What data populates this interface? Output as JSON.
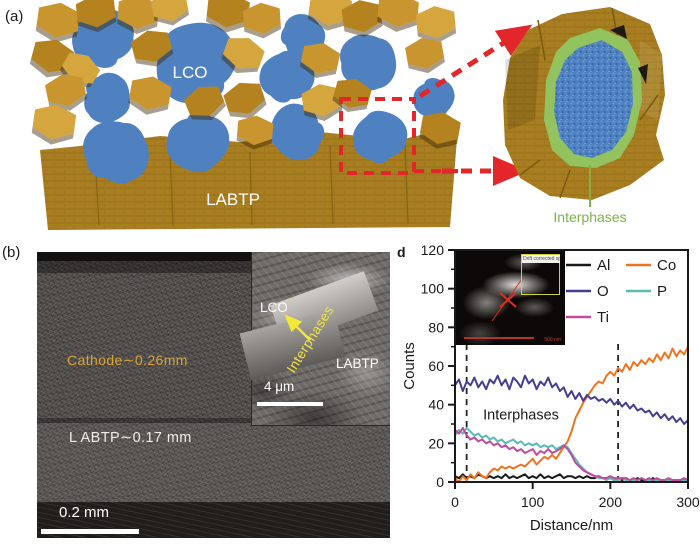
{
  "figure_labels": {
    "a": "(a)",
    "b": "(b)",
    "d": "d"
  },
  "panel_a": {
    "lco": "LCO",
    "labtp": "LABTP",
    "interphases": "Interphases",
    "colors": {
      "gold": "#b4831f",
      "lco_blue": "#4f81c0",
      "interphase_green": "#93c35e",
      "highlight_red": "#e3262a",
      "interphases_text_green": "#7cb342"
    }
  },
  "panel_b": {
    "cathode_label": "Cathode∼0.26mm",
    "labtp_label": "L ABTP∼0.17 mm",
    "scale_bar_label": "0.2 mm",
    "label_colors": {
      "cathode": "#d9a43c",
      "inset_yellow": "#f2e838"
    },
    "inset": {
      "lco": "LCO",
      "interphases": "Interphases",
      "labtp": "LABTP",
      "scale_bar_label": "4 μm"
    }
  },
  "panel_d": {
    "inset": {
      "box_label": "Drift corrected spect",
      "scale_bar_label": "500 nm"
    }
  },
  "chart_data": {
    "type": "line",
    "title": "",
    "xlabel": "Distance/nm",
    "ylabel": "Counts",
    "xlim": [
      0,
      300
    ],
    "ylim": [
      0,
      120
    ],
    "xticks": [
      0,
      100,
      200,
      300
    ],
    "yticks": [
      0,
      20,
      40,
      60,
      80,
      100,
      120
    ],
    "grid": false,
    "legend_position": "inside top-right, 2 columns",
    "x_step": 5,
    "annotation": {
      "text": "Interphases",
      "x": 85,
      "y": 35
    },
    "guide_lines": [
      {
        "x": 15,
        "y_top": 72
      },
      {
        "x": 210,
        "y_top": 72
      }
    ],
    "legend": {
      "columns": 2,
      "order": [
        "Al",
        "Co",
        "O",
        "P",
        "Ti"
      ]
    },
    "series": [
      {
        "name": "Al",
        "color": "#1a1a1a",
        "values": [
          3,
          2,
          4,
          2,
          3,
          2,
          4,
          3,
          2,
          3,
          2,
          3,
          2,
          4,
          2,
          3,
          2,
          3,
          4,
          2,
          3,
          2,
          4,
          2,
          3,
          2,
          3,
          4,
          2,
          3,
          3,
          2,
          3,
          2,
          3,
          2,
          2,
          3,
          2,
          2,
          2,
          1,
          2,
          1,
          2,
          1,
          1,
          2,
          1,
          1,
          1,
          2,
          1,
          1,
          1,
          1,
          1,
          1,
          1,
          1,
          1
        ]
      },
      {
        "name": "Co",
        "color": "#ee7320",
        "values": [
          2,
          0,
          3,
          1,
          4,
          2,
          5,
          3,
          2,
          5,
          7,
          6,
          8,
          7,
          8,
          7,
          8,
          9,
          8,
          10,
          12,
          9,
          11,
          13,
          12,
          14,
          12,
          15,
          18,
          21,
          26,
          33,
          37,
          41,
          44,
          47,
          50,
          52,
          51,
          55,
          57,
          55,
          59,
          57,
          61,
          58,
          62,
          60,
          63,
          61,
          64,
          62,
          66,
          63,
          67,
          64,
          69,
          65,
          68,
          66,
          70
        ]
      },
      {
        "name": "O",
        "color": "#453d92",
        "values": [
          50,
          53,
          47,
          52,
          50,
          54,
          49,
          52,
          48,
          53,
          51,
          55,
          50,
          53,
          48,
          54,
          52,
          49,
          55,
          51,
          53,
          48,
          52,
          50,
          54,
          49,
          51,
          47,
          49,
          44,
          47,
          43,
          46,
          42,
          45,
          43,
          44,
          42,
          43,
          41,
          43,
          40,
          42,
          39,
          41,
          38,
          40,
          37,
          38,
          36,
          37,
          34,
          36,
          33,
          35,
          32,
          34,
          31,
          33,
          30,
          32
        ]
      },
      {
        "name": "P",
        "color": "#58bdb4",
        "values": [
          24,
          27,
          25,
          28,
          26,
          24,
          25,
          23,
          24,
          22,
          23,
          21,
          22,
          20,
          21,
          22,
          20,
          21,
          19,
          20,
          19,
          20,
          18,
          19,
          18,
          19,
          17,
          18,
          19,
          18,
          15,
          12,
          9,
          7,
          5,
          4,
          3,
          2,
          2,
          1,
          2,
          1,
          1,
          2,
          1,
          1,
          1,
          1,
          2,
          1,
          1,
          1,
          1,
          1,
          1,
          1,
          1,
          1,
          1,
          1,
          1
        ]
      },
      {
        "name": "Ti",
        "color": "#bf4c9f",
        "values": [
          27,
          25,
          28,
          24,
          22,
          23,
          21,
          22,
          20,
          21,
          19,
          20,
          18,
          19,
          17,
          18,
          16,
          17,
          15,
          16,
          17,
          14,
          16,
          15,
          17,
          15,
          16,
          17,
          19,
          17,
          14,
          10,
          8,
          6,
          5,
          4,
          3,
          3,
          2,
          2,
          3,
          2,
          2,
          2,
          2,
          1,
          2,
          1,
          2,
          1,
          2,
          1,
          2,
          1,
          1,
          2,
          1,
          1,
          1,
          2,
          1
        ]
      }
    ]
  }
}
